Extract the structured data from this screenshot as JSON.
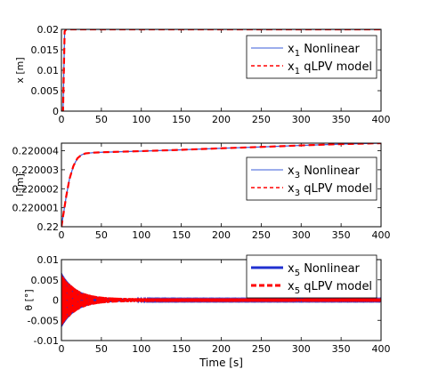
{
  "chart_data": [
    {
      "type": "line",
      "ylabel": "x [m]",
      "xlim": [
        0,
        400
      ],
      "ylim": [
        0,
        0.02
      ],
      "xticks": [
        0,
        50,
        100,
        150,
        200,
        250,
        300,
        350,
        400
      ],
      "yticks": [
        0,
        0.005,
        0.01,
        0.015,
        0.02
      ],
      "xtick_labels": [
        "0",
        "50",
        "100",
        "150",
        "200",
        "250",
        "300",
        "350",
        "400"
      ],
      "ytick_labels": [
        "0",
        "0.005",
        "0.01",
        "0.015",
        "0.02"
      ],
      "legend_position": "top-right",
      "series": [
        {
          "name": "x1 Nonlinear",
          "legend_main": "x",
          "legend_sub": "1",
          "legend_rest": " Nonlinear",
          "color": "#3a5bd9",
          "style": "solid",
          "x": [
            0,
            2,
            4,
            6,
            10,
            400
          ],
          "y": [
            0,
            0.0,
            0.0195,
            0.02,
            0.02,
            0.02
          ]
        },
        {
          "name": "x1 qLPV model",
          "legend_main": "x",
          "legend_sub": "1",
          "legend_rest": " qLPV model",
          "color": "#ff0000",
          "style": "dashed",
          "x": [
            0,
            2,
            4,
            6,
            10,
            400
          ],
          "y": [
            0,
            0.0,
            0.0195,
            0.02,
            0.02,
            0.02
          ]
        }
      ]
    },
    {
      "type": "line",
      "ylabel": "l [m]",
      "xlim": [
        0,
        400
      ],
      "ylim": [
        0.22,
        0.2200044
      ],
      "xticks": [
        0,
        50,
        100,
        150,
        200,
        250,
        300,
        350,
        400
      ],
      "yticks": [
        0.22,
        0.220001,
        0.220002,
        0.220003,
        0.220004
      ],
      "xtick_labels": [
        "0",
        "50",
        "100",
        "150",
        "200",
        "250",
        "300",
        "350",
        "400"
      ],
      "ytick_labels": [
        "0.22",
        "0.220001",
        "0.220002",
        "0.220003",
        "0.220004"
      ],
      "legend_position": "top-right",
      "series": [
        {
          "name": "x3 Nonlinear",
          "legend_main": "x",
          "legend_sub": "3",
          "legend_rest": " Nonlinear",
          "color": "#3a5bd9",
          "style": "solid",
          "x": [
            0,
            3,
            6,
            10,
            15,
            20,
            25,
            30,
            40,
            50,
            75,
            100,
            150,
            200,
            250,
            300,
            350,
            400
          ],
          "y": [
            0.22,
            0.2200008,
            0.2200016,
            0.2200025,
            0.2200032,
            0.2200036,
            0.22000378,
            0.22000386,
            0.2200039,
            0.22000392,
            0.22000395,
            0.22000398,
            0.22000405,
            0.22000413,
            0.2200042,
            0.22000428,
            0.22000435,
            0.2200044
          ]
        },
        {
          "name": "x3 qLPV model",
          "legend_main": "x",
          "legend_sub": "3",
          "legend_rest": " qLPV model",
          "color": "#ff0000",
          "style": "dashed",
          "x": [
            0,
            3,
            6,
            10,
            15,
            20,
            25,
            30,
            40,
            50,
            75,
            100,
            150,
            200,
            250,
            300,
            350,
            400
          ],
          "y": [
            0.22,
            0.2200008,
            0.2200016,
            0.2200025,
            0.2200032,
            0.2200036,
            0.22000378,
            0.22000386,
            0.2200039,
            0.22000392,
            0.22000395,
            0.22000398,
            0.22000405,
            0.22000413,
            0.2200042,
            0.22000428,
            0.22000435,
            0.2200044
          ]
        }
      ]
    },
    {
      "type": "line",
      "ylabel": "θ [°]",
      "xlabel": "Time [s]",
      "xlim": [
        0,
        400
      ],
      "ylim": [
        -0.01,
        0.01
      ],
      "xticks": [
        0,
        50,
        100,
        150,
        200,
        250,
        300,
        350,
        400
      ],
      "yticks": [
        -0.01,
        -0.005,
        0,
        0.005,
        0.01
      ],
      "xtick_labels": [
        "0",
        "50",
        "100",
        "150",
        "200",
        "250",
        "300",
        "350",
        "400"
      ],
      "ytick_labels": [
        "-0.01",
        "-0.005",
        "0",
        "0.005",
        "0.01"
      ],
      "legend_position": "top-right",
      "oscillation": {
        "initial_amplitude": 0.0068,
        "decay_time_s": 18,
        "residual_amplitude": 0.0003,
        "period_s": 1.0
      },
      "series": [
        {
          "name": "x5 Nonlinear",
          "legend_main": "x",
          "legend_sub": "5",
          "legend_rest": " Nonlinear",
          "color": "#2030d0",
          "style": "solid-thick"
        },
        {
          "name": "x5 qLPV model",
          "legend_main": "x",
          "legend_sub": "5",
          "legend_rest": " qLPV model",
          "color": "#ff0000",
          "style": "dashed-thick"
        }
      ]
    }
  ]
}
